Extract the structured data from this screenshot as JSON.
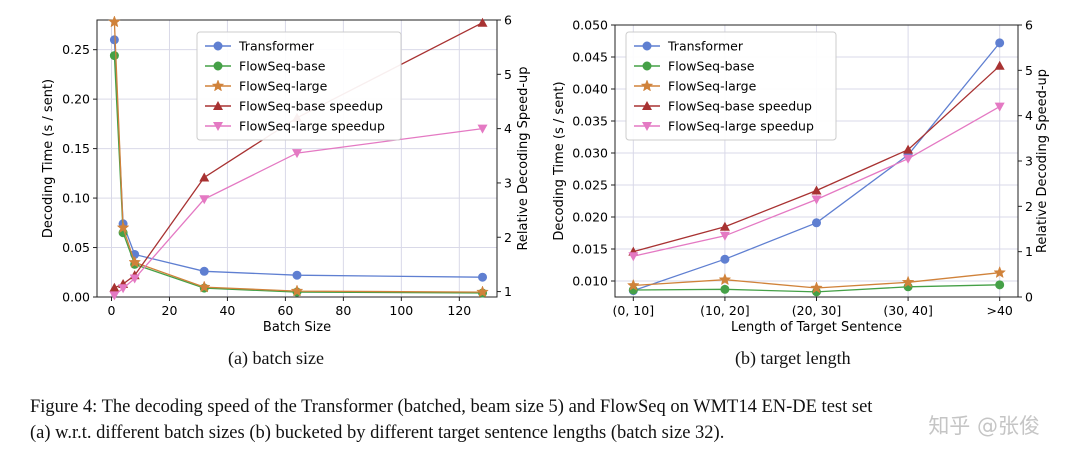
{
  "chart_data": [
    {
      "type": "line",
      "xlabel": "Batch Size",
      "ylabel": "Decoding Time (s / sent)",
      "y2label": "Relative Decoding Speed-up",
      "x": [
        1,
        4,
        8,
        32,
        64,
        128
      ],
      "xlim": [
        -5,
        133
      ],
      "ylim": [
        0,
        0.28
      ],
      "y2lim": [
        0.9,
        6.0
      ],
      "xticks": [
        0,
        20,
        40,
        60,
        80,
        100,
        120
      ],
      "xtick_labels": [
        "0",
        "20",
        "40",
        "60",
        "80",
        "100",
        "120"
      ],
      "yticks": [
        0,
        0.05,
        0.1,
        0.15,
        0.2,
        0.25
      ],
      "ytick_labels": [
        "0.00",
        "0.05",
        "0.10",
        "0.15",
        "0.20",
        "0.25"
      ],
      "y2ticks": [
        1,
        2,
        3,
        4,
        5,
        6
      ],
      "y2tick_labels": [
        "1",
        "2",
        "3",
        "4",
        "5",
        "6"
      ],
      "legend_position": "top-center",
      "grid": true,
      "series": [
        {
          "name": "Transformer",
          "axis": "left",
          "color": "#5f7fd1",
          "marker": "circle",
          "x": [
            1,
            4,
            8,
            32,
            64,
            128
          ],
          "values": [
            0.26,
            0.074,
            0.043,
            0.026,
            0.022,
            0.02
          ]
        },
        {
          "name": "FlowSeq-base",
          "axis": "left",
          "color": "#45a047",
          "marker": "circle",
          "x": [
            1,
            4,
            8,
            32,
            64,
            128
          ],
          "values": [
            0.244,
            0.065,
            0.033,
            0.009,
            0.005,
            0.004
          ]
        },
        {
          "name": "FlowSeq-large",
          "axis": "left",
          "color": "#d0823a",
          "marker": "star",
          "x": [
            1,
            4,
            8,
            32,
            64,
            128
          ],
          "values": [
            0.278,
            0.07,
            0.035,
            0.01,
            0.006,
            0.005
          ]
        },
        {
          "name": "FlowSeq-base speedup",
          "axis": "right",
          "color": "#a83232",
          "marker": "triangle-up",
          "x": [
            1,
            4,
            8,
            32,
            64,
            128
          ],
          "values": [
            1.07,
            1.14,
            1.3,
            3.1,
            4.2,
            5.95
          ]
        },
        {
          "name": "FlowSeq-large speedup",
          "axis": "right",
          "color": "#e479c3",
          "marker": "triangle-down",
          "x": [
            1,
            4,
            8,
            32,
            64,
            128
          ],
          "values": [
            0.93,
            1.06,
            1.24,
            2.7,
            3.55,
            4.0
          ]
        }
      ]
    },
    {
      "type": "line",
      "xlabel": "Length of Target Sentence",
      "ylabel": "Decoding Time (s / sent)",
      "y2label": "Relative Decoding Speed-up",
      "categories": [
        "(0, 10]",
        "(10, 20]",
        "(20, 30]",
        "(30, 40]",
        ">40"
      ],
      "ylim": [
        0.0075,
        0.05
      ],
      "y2lim": [
        0,
        6
      ],
      "yticks": [
        0.01,
        0.015,
        0.02,
        0.025,
        0.03,
        0.035,
        0.04,
        0.045,
        0.05
      ],
      "ytick_labels": [
        "0.010",
        "0.015",
        "0.020",
        "0.025",
        "0.030",
        "0.035",
        "0.040",
        "0.045",
        "0.050"
      ],
      "y2ticks": [
        0,
        1,
        2,
        3,
        4,
        5,
        6
      ],
      "y2tick_labels": [
        "0",
        "1",
        "2",
        "3",
        "4",
        "5",
        "6"
      ],
      "legend_position": "top-left",
      "grid": true,
      "series": [
        {
          "name": "Transformer",
          "axis": "left",
          "color": "#5f7fd1",
          "marker": "circle",
          "values": [
            0.0085,
            0.0134,
            0.0191,
            0.0297,
            0.0472
          ]
        },
        {
          "name": "FlowSeq-base",
          "axis": "left",
          "color": "#45a047",
          "marker": "circle",
          "values": [
            0.0086,
            0.0087,
            0.0083,
            0.0091,
            0.0094
          ]
        },
        {
          "name": "FlowSeq-large",
          "axis": "left",
          "color": "#d0823a",
          "marker": "star",
          "values": [
            0.0093,
            0.0102,
            0.0089,
            0.0098,
            0.0113
          ]
        },
        {
          "name": "FlowSeq-base speedup",
          "axis": "right",
          "color": "#a83232",
          "marker": "triangle-up",
          "values": [
            1.0,
            1.55,
            2.35,
            3.25,
            5.1
          ]
        },
        {
          "name": "FlowSeq-large speedup",
          "axis": "right",
          "color": "#e479c3",
          "marker": "triangle-down",
          "values": [
            0.9,
            1.35,
            2.15,
            3.05,
            4.2
          ]
        }
      ]
    }
  ],
  "subcaptions": [
    "(a) batch size",
    "(b) target length"
  ],
  "caption": {
    "line1": "Figure 4: The decoding speed of the Transformer (batched, beam size 5) and FlowSeq on WMT14 EN-DE test set",
    "line2": "(a) w.r.t. different batch sizes (b) bucketed by different target sentence lengths (batch size 32)."
  },
  "watermark": "知乎 @张俊"
}
